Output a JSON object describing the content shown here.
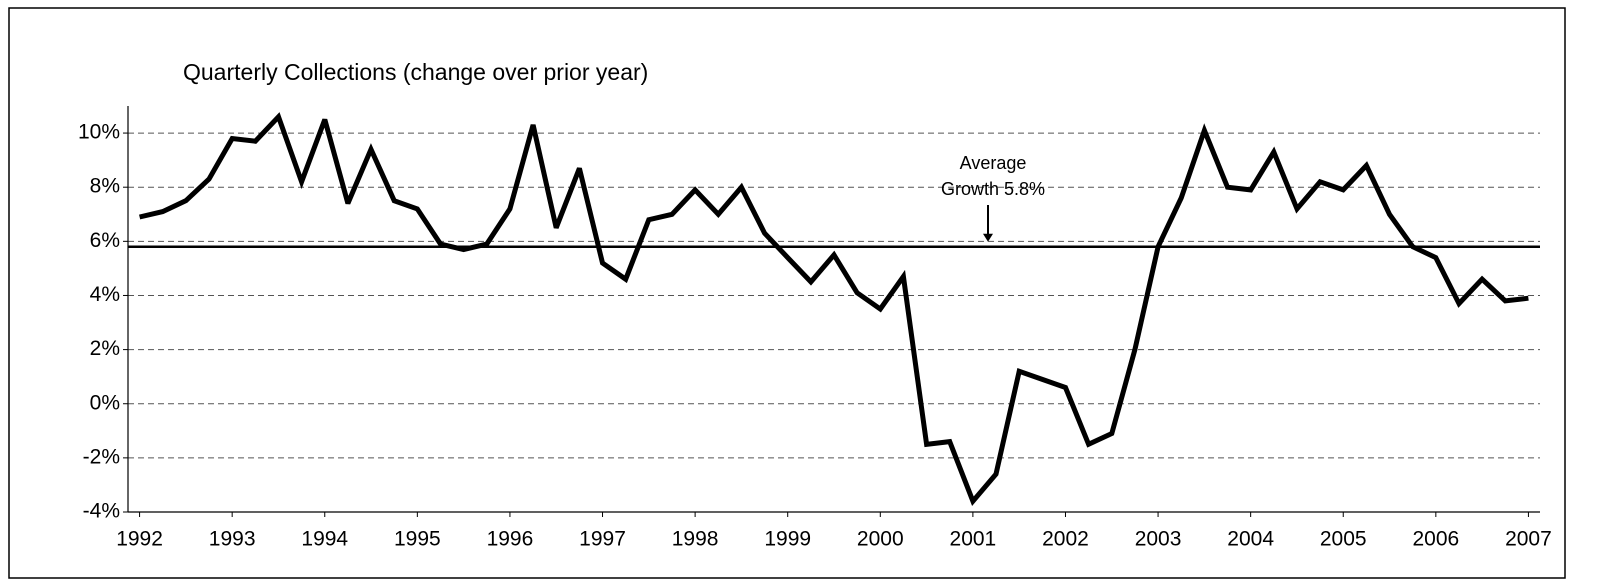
{
  "chart_data": {
    "type": "line",
    "title": "Quarterly Collections (change over prior year)",
    "categories": [
      "1992",
      null,
      null,
      null,
      "1993",
      null,
      null,
      null,
      "1994",
      null,
      null,
      null,
      "1995",
      null,
      null,
      null,
      "1996",
      null,
      null,
      null,
      "1997",
      null,
      null,
      null,
      "1998",
      null,
      null,
      null,
      "1999",
      null,
      null,
      null,
      "2000",
      null,
      null,
      null,
      "2001",
      null,
      null,
      null,
      "2002",
      null,
      null,
      null,
      "2003",
      null,
      null,
      null,
      "2004",
      null,
      null,
      null,
      "2005",
      null,
      null,
      null,
      "2006",
      null,
      null,
      null,
      "2007"
    ],
    "series": [
      {
        "color": "#000000",
        "values": [
          6.9,
          7.1,
          7.5,
          8.3,
          9.8,
          9.7,
          10.6,
          8.2,
          10.5,
          7.4,
          9.4,
          7.5,
          7.2,
          5.9,
          5.7,
          5.9,
          7.2,
          10.3,
          6.5,
          8.7,
          5.2,
          4.6,
          6.8,
          7.0,
          7.9,
          7.0,
          8.0,
          6.3,
          5.4,
          4.5,
          5.5,
          4.1,
          3.5,
          4.7,
          -1.5,
          -1.4,
          -3.6,
          -2.6,
          1.2,
          0.9,
          0.6,
          -1.5,
          -1.1,
          2.0,
          5.8,
          7.6,
          10.1,
          8.0,
          7.9,
          9.3,
          7.2,
          8.2,
          7.9,
          8.8,
          7.0,
          5.8,
          5.4,
          3.7,
          4.6,
          3.8,
          3.9
        ]
      }
    ],
    "ylim": [
      -4,
      11
    ],
    "yticks": [
      {
        "value": -4,
        "label": "-4%"
      },
      {
        "value": -2,
        "label": "-2%"
      },
      {
        "value": 0,
        "label": "0%"
      },
      {
        "value": 2,
        "label": "2%"
      },
      {
        "value": 4,
        "label": "4%"
      },
      {
        "value": 6,
        "label": "6%"
      },
      {
        "value": 8,
        "label": "8%"
      },
      {
        "value": 10,
        "label": "10%"
      }
    ],
    "grid": true,
    "average_line": {
      "value": 5.8,
      "label": [
        "Average",
        "Growth 5.8%"
      ]
    }
  }
}
